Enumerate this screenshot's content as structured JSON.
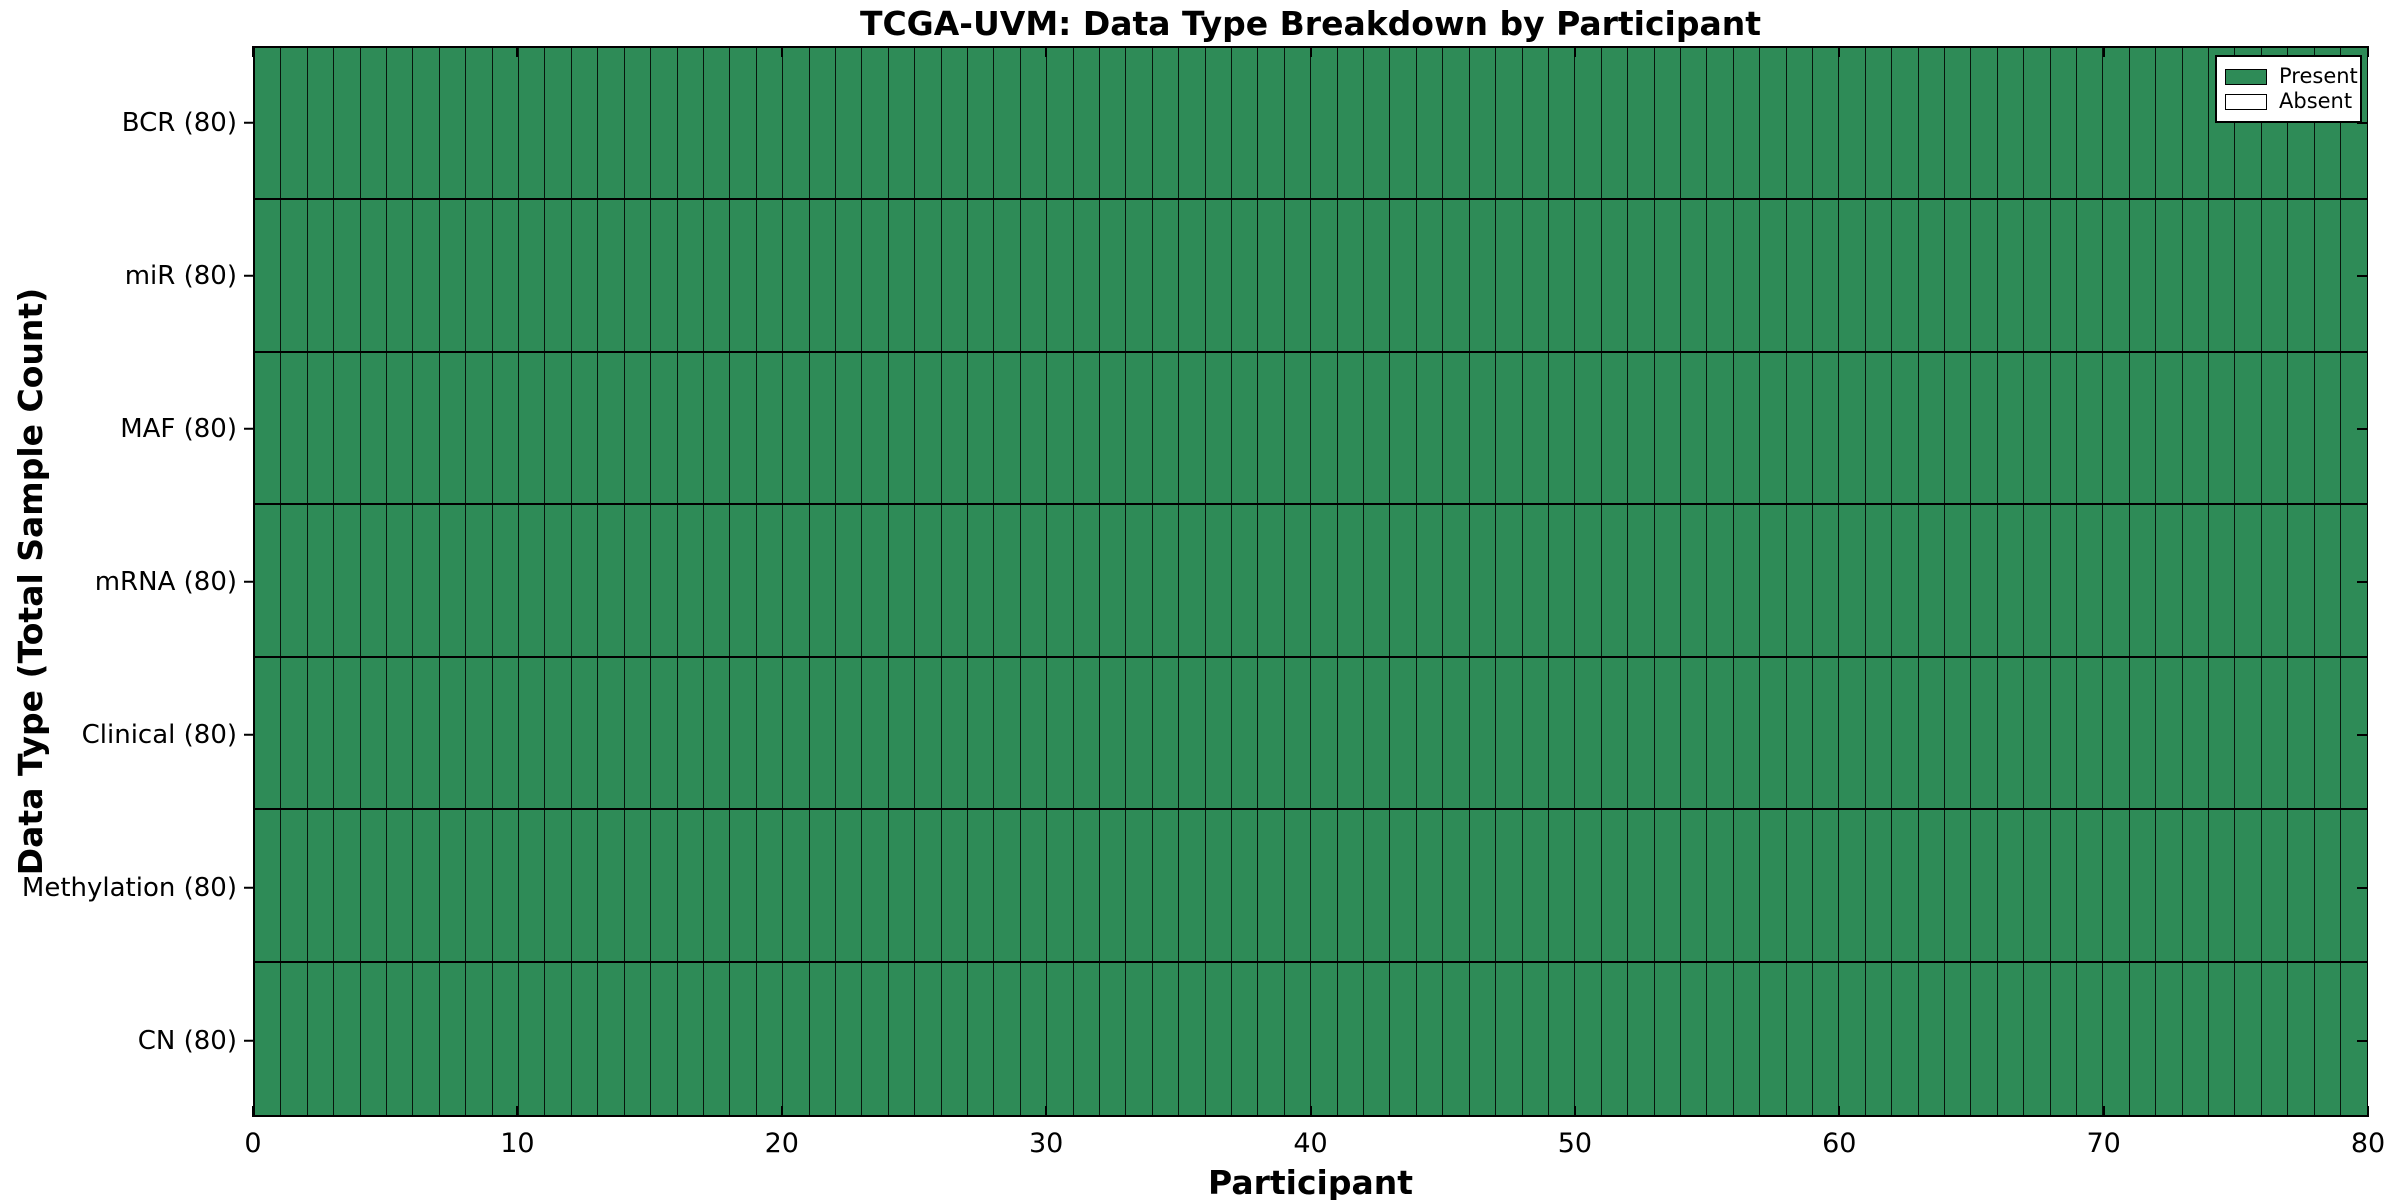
{
  "figure": {
    "title": "TCGA-UVM: Data Type Breakdown by Participant"
  },
  "chart_data": {
    "type": "heatmap",
    "title": "TCGA-UVM: Data Type Breakdown by Participant",
    "xlabel": "Participant",
    "ylabel": "Data Type (Total Sample Count)",
    "xlim": [
      0,
      80
    ],
    "x_ticks": [
      0,
      10,
      20,
      30,
      40,
      50,
      60,
      70,
      80
    ],
    "n_participants": 80,
    "rows": [
      {
        "label": "BCR (80)",
        "data_type": "BCR",
        "total_samples": 80,
        "present_count": 80,
        "absent_count": 0
      },
      {
        "label": "miR (80)",
        "data_type": "miR",
        "total_samples": 80,
        "present_count": 80,
        "absent_count": 0
      },
      {
        "label": "MAF (80)",
        "data_type": "MAF",
        "total_samples": 80,
        "present_count": 80,
        "absent_count": 0
      },
      {
        "label": "mRNA (80)",
        "data_type": "mRNA",
        "total_samples": 80,
        "present_count": 80,
        "absent_count": 0
      },
      {
        "label": "Clinical (80)",
        "data_type": "Clinical",
        "total_samples": 80,
        "present_count": 80,
        "absent_count": 0
      },
      {
        "label": "Methylation (80)",
        "data_type": "Methylation",
        "total_samples": 80,
        "present_count": 80,
        "absent_count": 0
      },
      {
        "label": "CN (80)",
        "data_type": "CN",
        "total_samples": 80,
        "present_count": 80,
        "absent_count": 0
      }
    ],
    "all_cells_status": "Present",
    "legend": {
      "position": "upper-right",
      "entries": [
        {
          "label": "Present",
          "color": "#2e8b57"
        },
        {
          "label": "Absent",
          "color": "#ffffff"
        }
      ]
    },
    "colors": {
      "present": "#2e8b57",
      "absent": "#ffffff",
      "cell_edge": "#000000",
      "background": "#ffffff"
    }
  }
}
